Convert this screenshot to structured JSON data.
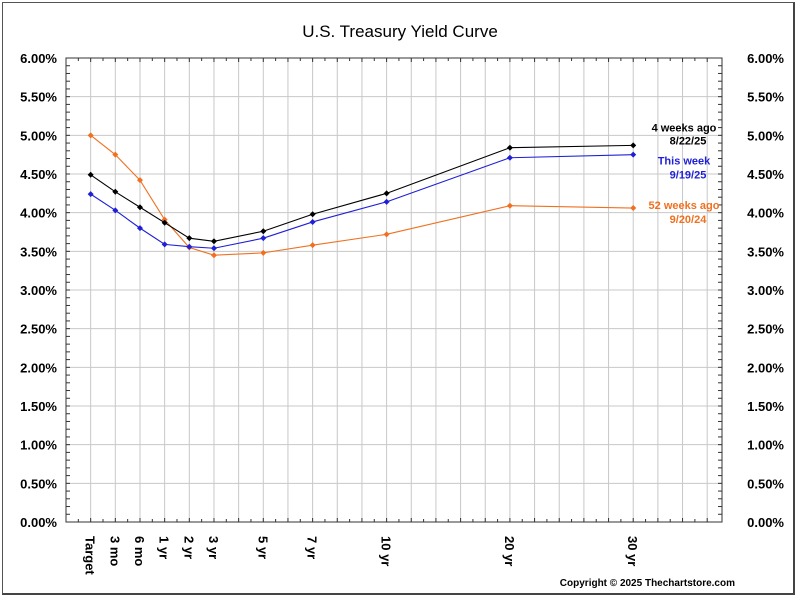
{
  "chart_data": {
    "type": "line",
    "title": "U.S. Treasury Yield Curve",
    "xlabel": "",
    "ylabel": "",
    "categories": [
      "Target",
      "3 mo",
      "6 mo",
      "1 yr",
      "2 yr",
      "3 yr",
      "5 yr",
      "7 yr",
      "10 yr",
      "20 yr",
      "30 yr"
    ],
    "category_positions": [
      1,
      2,
      3,
      4,
      5,
      6,
      8,
      10,
      13,
      18,
      23
    ],
    "xlim": [
      0,
      26.6
    ],
    "ylim": [
      0,
      6
    ],
    "yticks": [
      "0.00%",
      "0.50%",
      "1.00%",
      "1.50%",
      "2.00%",
      "2.50%",
      "3.00%",
      "3.50%",
      "4.00%",
      "4.50%",
      "5.00%",
      "5.50%",
      "6.00%"
    ],
    "ytick_values": [
      0,
      0.5,
      1,
      1.5,
      2,
      2.5,
      3,
      3.5,
      4,
      4.5,
      5,
      5.5,
      6
    ],
    "grid": true,
    "legend_placement": "right, inline next to series ends",
    "series": [
      {
        "name": "4 weeks ago",
        "date": "8/22/25",
        "color": "#000000",
        "values": [
          4.49,
          4.27,
          4.07,
          3.87,
          3.67,
          3.63,
          3.76,
          3.98,
          4.25,
          4.84,
          4.87
        ]
      },
      {
        "name": "This week",
        "date": "9/19/25",
        "color": "#1f1fd6",
        "values": [
          4.24,
          4.03,
          3.8,
          3.59,
          3.56,
          3.54,
          3.67,
          3.88,
          4.14,
          4.71,
          4.75
        ]
      },
      {
        "name": "52 weeks ago",
        "date": "9/20/24",
        "color": "#f07020",
        "values": [
          5.0,
          4.75,
          4.42,
          3.91,
          3.55,
          3.45,
          3.48,
          3.58,
          3.72,
          4.09,
          4.06
        ]
      }
    ],
    "annotations": [
      "Copyright © 2025 Thechartstore.com"
    ]
  }
}
